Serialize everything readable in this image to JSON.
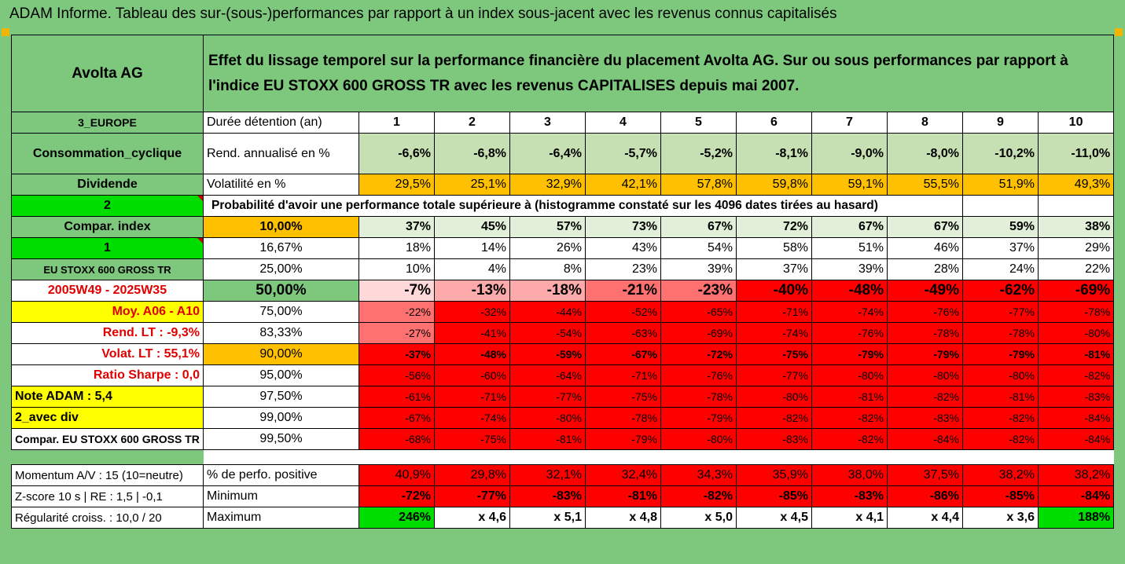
{
  "title": "ADAM Informe. Tableau des sur-(sous-)performances par rapport à un index sous-jacent avec les revenus connus capitalisés",
  "header": {
    "name": "Avolta AG",
    "description": "Effet du lissage temporel sur la performance financière du placement Avolta AG. Sur ou sous performances par rapport à l'indice EU STOXX 600 GROSS TR avec les revenus CAPITALISES depuis mai 2007."
  },
  "left": {
    "region": "3_EUROPE",
    "sector": "Consommation_cyclique",
    "dividend": "Dividende",
    "num2": "2",
    "compar": "Compar. index",
    "num1": "1",
    "index_name": "EU STOXX 600 GROSS TR",
    "period": "2005W49 - 2025W35",
    "moy": "Moy. A06 - A10",
    "rend": "Rend. LT :   -9,3%",
    "volat": "Volat. LT :   55,1%",
    "sharpe": "Ratio Sharpe :   0,0",
    "note": "Note ADAM : 5,4",
    "avec_div": "2_avec div",
    "compar_full": "Compar. EU STOXX 600 GROSS TR",
    "momentum": "Momentum A/V : 15 (10=neutre)",
    "zscore": "Z-score 10 s  | RE : 1,5 | -0,1",
    "regularite": "Régularité croiss. : 10,0 / 20"
  },
  "labels": {
    "duree": "Durée détention (an)",
    "rend": "Rend. annualisé en %",
    "vol": "Volatilité en %",
    "proba": "Probabilité d'avoir une performance totale supérieure à (histogramme constaté sur les 4096 dates tirées au hasard)",
    "perf_pos": "% de perfo. positive",
    "minimum": "Minimum",
    "maximum": "Maximum"
  },
  "years": [
    "1",
    "2",
    "3",
    "4",
    "5",
    "6",
    "7",
    "8",
    "9",
    "10"
  ],
  "rend": [
    "-6,6%",
    "-6,8%",
    "-6,4%",
    "-5,7%",
    "-5,2%",
    "-8,1%",
    "-9,0%",
    "-8,0%",
    "-10,2%",
    "-11,0%"
  ],
  "vol": [
    "29,5%",
    "25,1%",
    "32,9%",
    "42,1%",
    "57,8%",
    "59,8%",
    "59,1%",
    "55,5%",
    "51,9%",
    "49,3%"
  ],
  "percentiles": [
    {
      "p": "10,00%",
      "v": [
        "37%",
        "45%",
        "57%",
        "73%",
        "67%",
        "72%",
        "67%",
        "67%",
        "59%",
        "38%"
      ]
    },
    {
      "p": "16,67%",
      "v": [
        "18%",
        "14%",
        "26%",
        "43%",
        "54%",
        "58%",
        "51%",
        "46%",
        "37%",
        "29%"
      ]
    },
    {
      "p": "25,00%",
      "v": [
        "10%",
        "4%",
        "8%",
        "23%",
        "39%",
        "37%",
        "39%",
        "28%",
        "24%",
        "22%"
      ]
    },
    {
      "p": "50,00%",
      "v": [
        "-7%",
        "-13%",
        "-18%",
        "-21%",
        "-23%",
        "-40%",
        "-48%",
        "-49%",
        "-62%",
        "-69%"
      ]
    },
    {
      "p": "75,00%",
      "v": [
        "-22%",
        "-32%",
        "-44%",
        "-52%",
        "-65%",
        "-71%",
        "-74%",
        "-76%",
        "-77%",
        "-78%"
      ]
    },
    {
      "p": "83,33%",
      "v": [
        "-27%",
        "-41%",
        "-54%",
        "-63%",
        "-69%",
        "-74%",
        "-76%",
        "-78%",
        "-78%",
        "-80%"
      ]
    },
    {
      "p": "90,00%",
      "v": [
        "-37%",
        "-48%",
        "-59%",
        "-67%",
        "-72%",
        "-75%",
        "-79%",
        "-79%",
        "-79%",
        "-81%"
      ]
    },
    {
      "p": "95,00%",
      "v": [
        "-56%",
        "-60%",
        "-64%",
        "-71%",
        "-76%",
        "-77%",
        "-80%",
        "-80%",
        "-80%",
        "-82%"
      ]
    },
    {
      "p": "97,50%",
      "v": [
        "-61%",
        "-71%",
        "-77%",
        "-75%",
        "-78%",
        "-80%",
        "-81%",
        "-82%",
        "-81%",
        "-83%"
      ]
    },
    {
      "p": "99,00%",
      "v": [
        "-67%",
        "-74%",
        "-80%",
        "-78%",
        "-79%",
        "-82%",
        "-82%",
        "-83%",
        "-82%",
        "-84%"
      ]
    },
    {
      "p": "99,50%",
      "v": [
        "-68%",
        "-75%",
        "-81%",
        "-79%",
        "-80%",
        "-83%",
        "-82%",
        "-84%",
        "-82%",
        "-84%"
      ]
    }
  ],
  "perf_pos": [
    "40,9%",
    "29,8%",
    "32,1%",
    "32,4%",
    "34,3%",
    "35,9%",
    "38,0%",
    "37,5%",
    "38,2%",
    "38,2%"
  ],
  "minimum": [
    "-72%",
    "-77%",
    "-83%",
    "-81%",
    "-82%",
    "-85%",
    "-83%",
    "-86%",
    "-85%",
    "-84%"
  ],
  "maximum": [
    "246%",
    "x 4,6",
    "x 5,1",
    "x 4,8",
    "x 5,0",
    "x 4,5",
    "x 4,1",
    "x 4,4",
    "x 3,6",
    "188%"
  ],
  "colors": {
    "green": "#7ec87e",
    "light_green": "#c6e0b4",
    "pale_green": "#e2f0d9",
    "bright_green": "#00dd00",
    "yellow": "#ffff00",
    "orange": "#ffc000",
    "red": "#ff0000",
    "red_text": "#e00000"
  }
}
